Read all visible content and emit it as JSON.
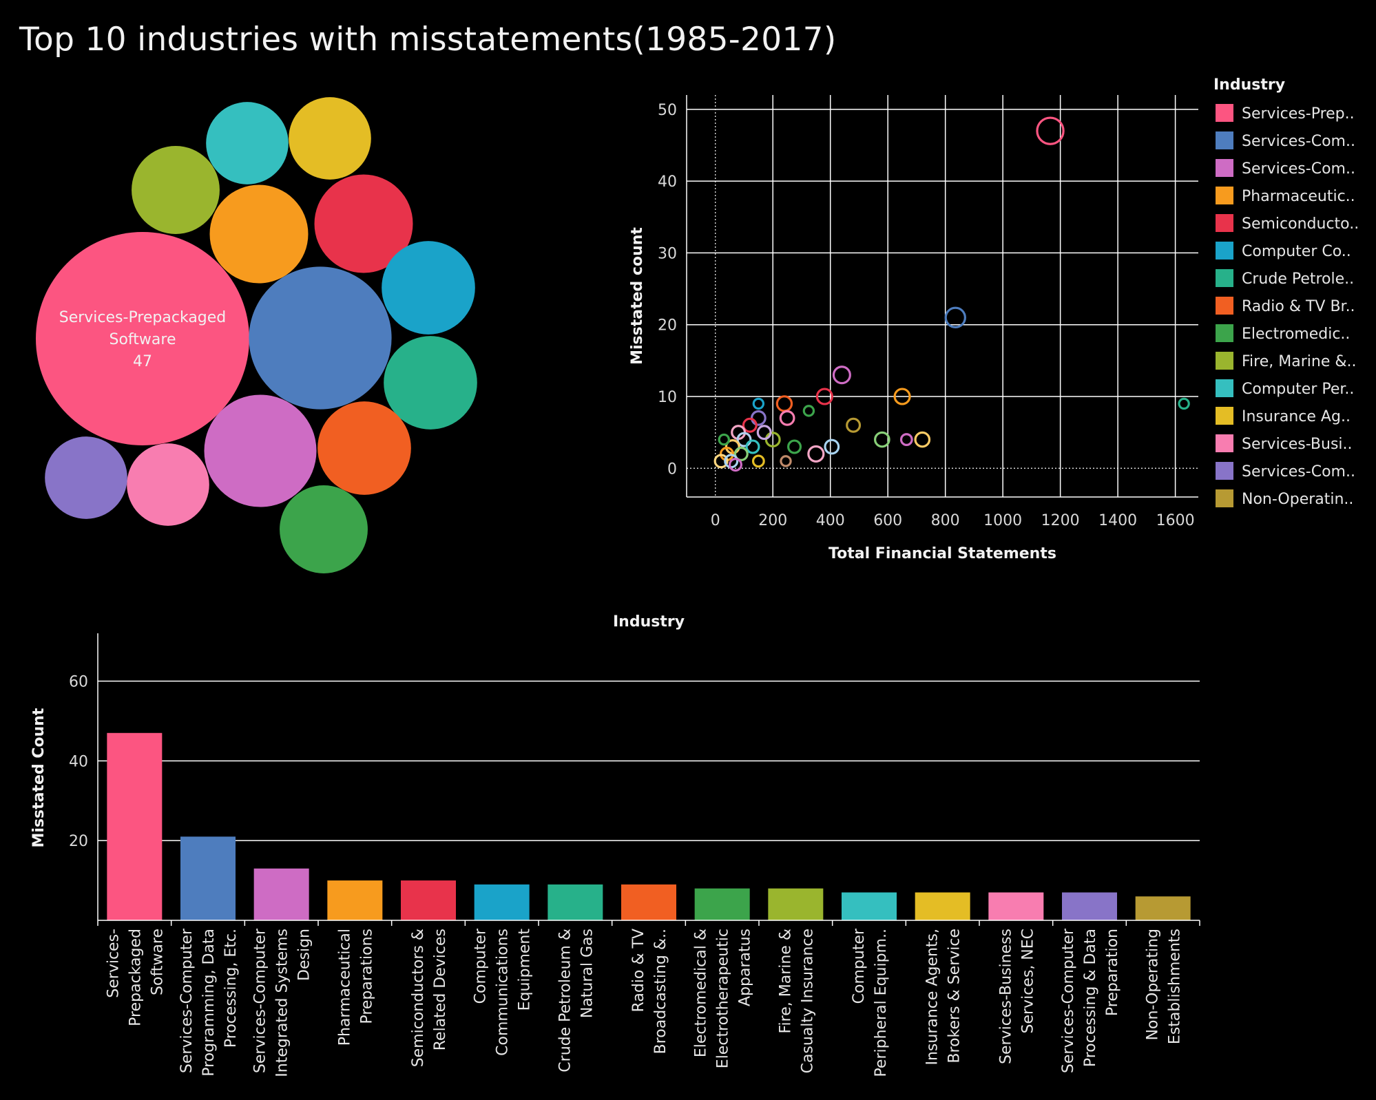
{
  "title": "Top 10 industries with misstatements(1985-2017)",
  "colors": {
    "background": "#000000",
    "gridline": "#ffffff",
    "palette": [
      "#fc5581",
      "#4e7dbe",
      "#ce6cc4",
      "#f79b1e",
      "#e8334b",
      "#1aa3c9",
      "#27b18a",
      "#f15f22",
      "#3ca44b",
      "#9ab52e",
      "#35bfbf",
      "#e4bd25",
      "#f87db0",
      "#8874c8",
      "#b79a33"
    ]
  },
  "chart_data": [
    {
      "type": "bubble",
      "id": "packed-bubbles",
      "label_title": "Services-Prepackaged Software",
      "label_value": "47",
      "bubbles": [
        {
          "industry": "Services-Prepackaged Software",
          "value": 47,
          "color": "#fc5581",
          "label_lines": [
            "Services-Prepackaged",
            "Software",
            "47"
          ]
        },
        {
          "industry": "Services-Computer Programming, Data Processing, Etc.",
          "value": 21,
          "color": "#4e7dbe"
        },
        {
          "industry": "Services-Computer Integrated Systems Design",
          "value": 13,
          "color": "#ce6cc4"
        },
        {
          "industry": "Pharmaceutical Preparations",
          "value": 10,
          "color": "#f79b1e"
        },
        {
          "industry": "Semiconductors & Related Devices",
          "value": 10,
          "color": "#e8334b"
        },
        {
          "industry": "Computer Communications Equipment",
          "value": 9,
          "color": "#1aa3c9"
        },
        {
          "industry": "Crude Petroleum & Natural Gas",
          "value": 9,
          "color": "#27b18a"
        },
        {
          "industry": "Radio & TV Broadcasting & Communications Equipment",
          "value": 9,
          "color": "#f15f22"
        },
        {
          "industry": "Electromedical & Electrotherapeutic Apparatus",
          "value": 8,
          "color": "#3ca44b"
        },
        {
          "industry": "Fire, Marine & Casualty Insurance",
          "value": 8,
          "color": "#9ab52e"
        },
        {
          "industry": "Computer Peripheral Equipment",
          "value": 7,
          "color": "#35bfbf"
        },
        {
          "industry": "Insurance Agents, Brokers & Service",
          "value": 7,
          "color": "#e4bd25"
        },
        {
          "industry": "Services-Business Services, NEC",
          "value": 7,
          "color": "#f87db0"
        },
        {
          "industry": "Services-Computer Processing & Data Preparation",
          "value": 7,
          "color": "#8874c8"
        }
      ]
    },
    {
      "type": "scatter",
      "id": "scatter",
      "xlabel": "Total Financial Statements",
      "ylabel": "Misstated count",
      "xlim": [
        -100,
        1680
      ],
      "ylim": [
        -4,
        52
      ],
      "xticks": [
        0,
        200,
        400,
        600,
        800,
        1000,
        1200,
        1400,
        1600
      ],
      "yticks": [
        0,
        10,
        20,
        30,
        40,
        50
      ],
      "grid": true,
      "legend_title": "Industry",
      "legend_position": "right",
      "legend": [
        {
          "label": "Services-Prep..",
          "color": "#fc5581"
        },
        {
          "label": "Services-Com..",
          "color": "#4e7dbe"
        },
        {
          "label": "Services-Com..",
          "color": "#ce6cc4"
        },
        {
          "label": "Pharmaceutic..",
          "color": "#f79b1e"
        },
        {
          "label": "Semiconducto..",
          "color": "#e8334b"
        },
        {
          "label": "Computer Co..",
          "color": "#1aa3c9"
        },
        {
          "label": "Crude Petrole..",
          "color": "#27b18a"
        },
        {
          "label": "Radio & TV Br..",
          "color": "#f15f22"
        },
        {
          "label": "Electromedic..",
          "color": "#3ca44b"
        },
        {
          "label": "Fire, Marine &..",
          "color": "#9ab52e"
        },
        {
          "label": "Computer Per..",
          "color": "#35bfbf"
        },
        {
          "label": "Insurance Ag..",
          "color": "#e4bd25"
        },
        {
          "label": "Services-Busi..",
          "color": "#f87db0"
        },
        {
          "label": "Services-Com..",
          "color": "#8874c8"
        },
        {
          "label": "Non-Operatin..",
          "color": "#b79a33"
        }
      ],
      "points": [
        {
          "x": 1165,
          "y": 47,
          "size": 47,
          "color": "#fc5581"
        },
        {
          "x": 835,
          "y": 21,
          "size": 21,
          "color": "#4e7dbe"
        },
        {
          "x": 440,
          "y": 13,
          "size": 13,
          "color": "#ce6cc4"
        },
        {
          "x": 380,
          "y": 10,
          "size": 10,
          "color": "#e8334b"
        },
        {
          "x": 650,
          "y": 10,
          "size": 10,
          "color": "#f79b1e"
        },
        {
          "x": 240,
          "y": 9,
          "size": 9,
          "color": "#f15f22"
        },
        {
          "x": 1630,
          "y": 9,
          "size": 2,
          "color": "#27b18a"
        },
        {
          "x": 325,
          "y": 8,
          "size": 2,
          "color": "#3ca44b"
        },
        {
          "x": 250,
          "y": 7,
          "size": 7,
          "color": "#f87db0"
        },
        {
          "x": 150,
          "y": 7,
          "size": 7,
          "color": "#8874c8"
        },
        {
          "x": 480,
          "y": 6,
          "size": 6,
          "color": "#b79a33"
        },
        {
          "x": 580,
          "y": 4,
          "size": 8,
          "color": "#88cf78"
        },
        {
          "x": 720,
          "y": 4,
          "size": 8,
          "color": "#ffcc66"
        },
        {
          "x": 665,
          "y": 4,
          "size": 3,
          "color": "#ce6cc4"
        },
        {
          "x": 405,
          "y": 3,
          "size": 7,
          "color": "#a8d3f0"
        },
        {
          "x": 350,
          "y": 2,
          "size": 10,
          "color": "#f4a6c6"
        },
        {
          "x": 275,
          "y": 3,
          "size": 5,
          "color": "#3ca44b"
        },
        {
          "x": 245,
          "y": 1,
          "size": 2,
          "color": "#c08a6a"
        },
        {
          "x": 150,
          "y": 9,
          "size": 2,
          "color": "#1aa3c9"
        },
        {
          "x": 120,
          "y": 6,
          "size": 6,
          "color": "#e8334b"
        },
        {
          "x": 80,
          "y": 5,
          "size": 6,
          "color": "#f4a6c6"
        },
        {
          "x": 200,
          "y": 4,
          "size": 7,
          "color": "#9ab52e"
        },
        {
          "x": 100,
          "y": 4,
          "size": 6,
          "color": "#b0d0ee"
        },
        {
          "x": 170,
          "y": 5,
          "size": 6,
          "color": "#c7a6e0"
        },
        {
          "x": 60,
          "y": 3,
          "size": 6,
          "color": "#ffcc66"
        },
        {
          "x": 130,
          "y": 3,
          "size": 5,
          "color": "#35bfbf"
        },
        {
          "x": 40,
          "y": 2,
          "size": 5,
          "color": "#f79b1e"
        },
        {
          "x": 90,
          "y": 2,
          "size": 5,
          "color": "#88cf78"
        },
        {
          "x": 20,
          "y": 1,
          "size": 5,
          "color": "#ffd780"
        },
        {
          "x": 55,
          "y": 1,
          "size": 5,
          "color": "#a8d3f0"
        },
        {
          "x": 150,
          "y": 1,
          "size": 3,
          "color": "#e4bd25"
        },
        {
          "x": 30,
          "y": 4,
          "size": 2,
          "color": "#3ca44b"
        },
        {
          "x": 70,
          "y": 0.5,
          "size": 4,
          "color": "#ce6cc4"
        }
      ]
    },
    {
      "type": "bar",
      "id": "bar",
      "title": "Industry",
      "ylabel": "Misstated Count",
      "ylim": [
        0,
        72
      ],
      "yticks": [
        20,
        40,
        60
      ],
      "grid": true,
      "categories": [
        {
          "lines": [
            "Services-",
            "Prepackaged",
            "Software"
          ],
          "value": 47,
          "color": "#fc5581"
        },
        {
          "lines": [
            "Services-Computer",
            "Programming, Data",
            "Processing, Etc."
          ],
          "value": 21,
          "color": "#4e7dbe"
        },
        {
          "lines": [
            "Services-Computer",
            "Integrated Systems",
            "Design"
          ],
          "value": 13,
          "color": "#ce6cc4"
        },
        {
          "lines": [
            "Pharmaceutical",
            "Preparations"
          ],
          "value": 10,
          "color": "#f79b1e"
        },
        {
          "lines": [
            "Semiconductors &",
            "Related Devices"
          ],
          "value": 10,
          "color": "#e8334b"
        },
        {
          "lines": [
            "Computer",
            "Communications",
            "Equipment"
          ],
          "value": 9,
          "color": "#1aa3c9"
        },
        {
          "lines": [
            "Crude Petroleum &",
            "Natural Gas"
          ],
          "value": 9,
          "color": "#27b18a"
        },
        {
          "lines": [
            "Radio & TV",
            "Broadcasting &.."
          ],
          "value": 9,
          "color": "#f15f22"
        },
        {
          "lines": [
            "Electromedical &",
            "Electrotherapeutic",
            "Apparatus"
          ],
          "value": 8,
          "color": "#3ca44b"
        },
        {
          "lines": [
            "Fire, Marine &",
            "Casualty Insurance"
          ],
          "value": 8,
          "color": "#9ab52e"
        },
        {
          "lines": [
            "Computer",
            "Peripheral Equipm.."
          ],
          "value": 7,
          "color": "#35bfbf"
        },
        {
          "lines": [
            "Insurance Agents,",
            "Brokers & Service"
          ],
          "value": 7,
          "color": "#e4bd25"
        },
        {
          "lines": [
            "Services-Business",
            "Services, NEC"
          ],
          "value": 7,
          "color": "#f87db0"
        },
        {
          "lines": [
            "Services-Computer",
            "Processing & Data",
            "Preparation"
          ],
          "value": 7,
          "color": "#8874c8"
        },
        {
          "lines": [
            "Non-Operating",
            "Establishments"
          ],
          "value": 6,
          "color": "#b79a33"
        }
      ]
    }
  ]
}
